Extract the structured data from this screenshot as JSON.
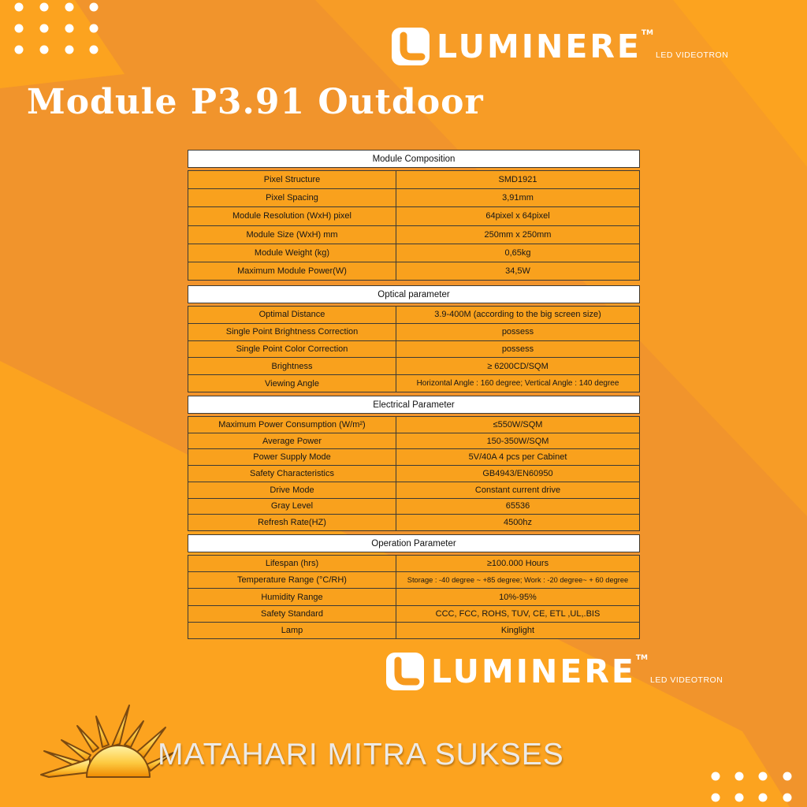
{
  "brand": {
    "name": "LUMINERE",
    "tm": "TM",
    "tagline": "LED VIDEOTRON",
    "logo_tile_icon": "luminere-l-icon"
  },
  "page_title": "Module P3.91 Outdoor",
  "company": "MATAHARI MITRA SUKSES",
  "footer_icon": "sun-icon",
  "colors": {
    "bg_bright": "#FCA31F",
    "bg_dark": "#F1942C",
    "table_row": "#F9A11D",
    "table_header_bg": "#FFFFFF",
    "table_border": "#3C3A35",
    "text_dark": "#161616",
    "brand_white": "#FFFFFF"
  },
  "tables": [
    {
      "title": "Module Composition",
      "rows": [
        [
          "Pixel Structure",
          "SMD1921"
        ],
        [
          "Pixel Spacing",
          "3,91mm"
        ],
        [
          "Module Resolution (WxH) pixel",
          "64pixel x 64pixel"
        ],
        [
          "Module Size (WxH) mm",
          "250mm x 250mm"
        ],
        [
          "Module Weight (kg)",
          "0,65kg"
        ],
        [
          "Maximum Module Power(W)",
          "34,5W"
        ]
      ]
    },
    {
      "title": "Optical parameter",
      "rows": [
        [
          "Optimal Distance",
          "3.9-400M (according to the big screen size)"
        ],
        [
          "Single Point Brightness Correction",
          "possess"
        ],
        [
          "Single Point Color Correction",
          "possess"
        ],
        [
          "Brightness",
          "≥ 6200CD/SQM"
        ],
        [
          "Viewing Angle",
          "Horizontal Angle : 160 degree; Vertical Angle : 140 degree"
        ]
      ]
    },
    {
      "title": "Electrical Parameter",
      "rows": [
        [
          "Maximum Power Consumption (W/m²)",
          "≤550W/SQM"
        ],
        [
          "Average Power",
          "150-350W/SQM"
        ],
        [
          "Power Supply Mode",
          "5V/40A  4 pcs per Cabinet"
        ],
        [
          "Safety Characteristics",
          "GB4943/EN60950"
        ],
        [
          "Drive Mode",
          "Constant current drive"
        ],
        [
          "Gray Level",
          "65536"
        ],
        [
          "Refresh Rate(HZ)",
          "4500hz"
        ]
      ]
    },
    {
      "title": "Operation Parameter",
      "rows": [
        [
          "Lifespan (hrs)",
          "≥100.000 Hours"
        ],
        [
          "Temperature Range (°C/RH)",
          "Storage : -40 degree ~ +85 degree; Work : -20 degree~ + 60 degree"
        ],
        [
          "Humidity Range",
          "10%-95%"
        ],
        [
          "Safety Standard",
          "CCC,  FCC, ROHS, TUV, CE,  ETL ,UL,.BIS"
        ],
        [
          "Lamp",
          "Kinglight"
        ]
      ]
    }
  ]
}
